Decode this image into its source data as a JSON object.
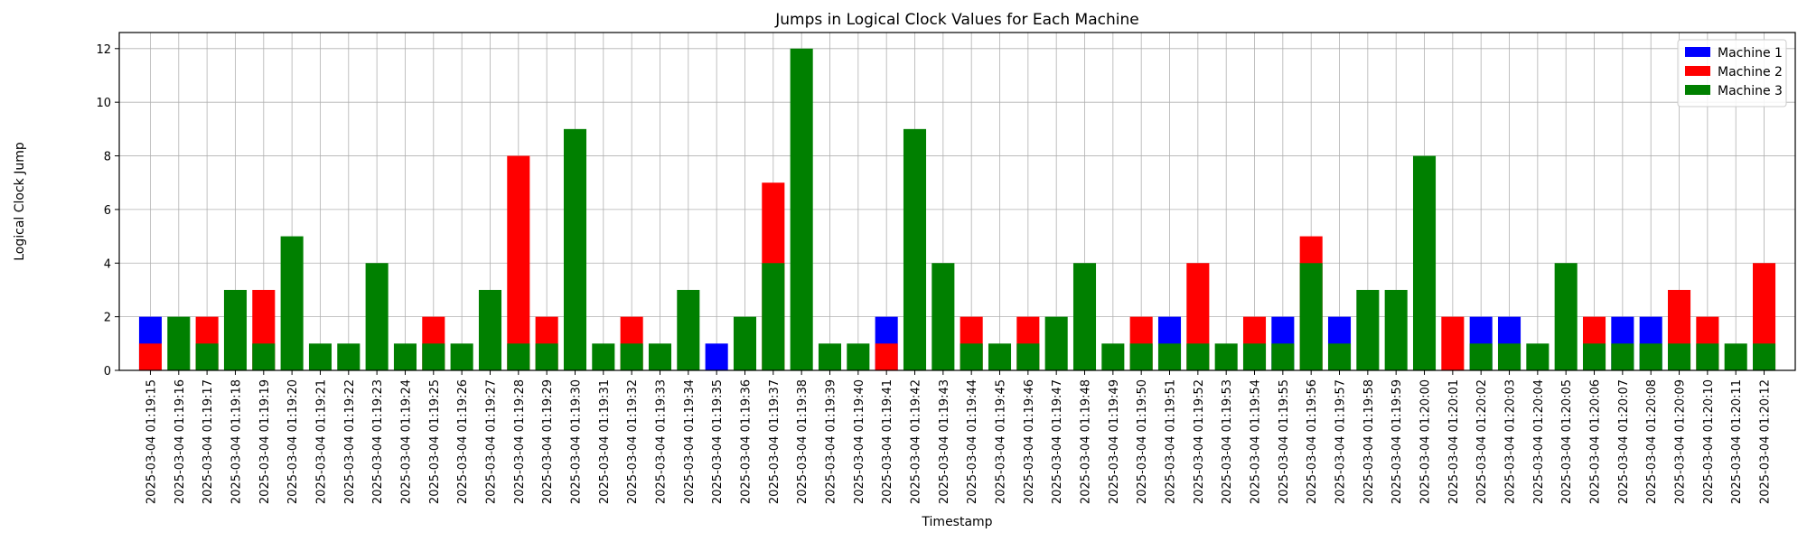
{
  "chart_data": {
    "type": "bar",
    "title": "Jumps in Logical Clock Values for Each Machine",
    "xlabel": "Timestamp",
    "ylabel": "Logical Clock Jump",
    "ylim": [
      0,
      12.6
    ],
    "yticks": [
      0,
      2,
      4,
      6,
      8,
      10,
      12
    ],
    "grid": true,
    "legend_position": "top-right",
    "stacked": false,
    "categories": [
      "2025-03-04 01:19:15",
      "2025-03-04 01:19:16",
      "2025-03-04 01:19:17",
      "2025-03-04 01:19:18",
      "2025-03-04 01:19:19",
      "2025-03-04 01:19:20",
      "2025-03-04 01:19:21",
      "2025-03-04 01:19:22",
      "2025-03-04 01:19:23",
      "2025-03-04 01:19:24",
      "2025-03-04 01:19:25",
      "2025-03-04 01:19:26",
      "2025-03-04 01:19:27",
      "2025-03-04 01:19:28",
      "2025-03-04 01:19:29",
      "2025-03-04 01:19:30",
      "2025-03-04 01:19:31",
      "2025-03-04 01:19:32",
      "2025-03-04 01:19:33",
      "2025-03-04 01:19:34",
      "2025-03-04 01:19:35",
      "2025-03-04 01:19:36",
      "2025-03-04 01:19:37",
      "2025-03-04 01:19:38",
      "2025-03-04 01:19:39",
      "2025-03-04 01:19:40",
      "2025-03-04 01:19:41",
      "2025-03-04 01:19:42",
      "2025-03-04 01:19:43",
      "2025-03-04 01:19:44",
      "2025-03-04 01:19:45",
      "2025-03-04 01:19:46",
      "2025-03-04 01:19:47",
      "2025-03-04 01:19:48",
      "2025-03-04 01:19:49",
      "2025-03-04 01:19:50",
      "2025-03-04 01:19:51",
      "2025-03-04 01:19:52",
      "2025-03-04 01:19:53",
      "2025-03-04 01:19:54",
      "2025-03-04 01:19:55",
      "2025-03-04 01:19:56",
      "2025-03-04 01:19:57",
      "2025-03-04 01:19:58",
      "2025-03-04 01:19:59",
      "2025-03-04 01:20:00",
      "2025-03-04 01:20:01",
      "2025-03-04 01:20:02",
      "2025-03-04 01:20:03",
      "2025-03-04 01:20:04",
      "2025-03-04 01:20:05",
      "2025-03-04 01:20:06",
      "2025-03-04 01:20:07",
      "2025-03-04 01:20:08",
      "2025-03-04 01:20:09",
      "2025-03-04 01:20:10",
      "2025-03-04 01:20:11",
      "2025-03-04 01:20:12"
    ],
    "series": [
      {
        "name": "Machine 1",
        "color": "#0000ff",
        "values": [
          2,
          0,
          0,
          0,
          0,
          0,
          0,
          0,
          0,
          0,
          0,
          0,
          0,
          0,
          0,
          0,
          0,
          0,
          0,
          0,
          1,
          0,
          0,
          0,
          0,
          0,
          2,
          0,
          0,
          0,
          0,
          0,
          0,
          0,
          0,
          0,
          2,
          0,
          0,
          0,
          2,
          0,
          2,
          0,
          0,
          0,
          0,
          2,
          2,
          0,
          0,
          0,
          2,
          2,
          0,
          0,
          0,
          0
        ]
      },
      {
        "name": "Machine 2",
        "color": "#ff0000",
        "values": [
          1,
          0,
          2,
          0,
          3,
          0,
          0,
          0,
          0,
          0,
          2,
          0,
          0,
          8,
          2,
          0,
          0,
          2,
          0,
          0,
          0,
          0,
          7,
          0,
          0,
          0,
          1,
          0,
          0,
          2,
          0,
          2,
          0,
          0,
          0,
          2,
          0,
          4,
          0,
          2,
          0,
          5,
          0,
          0,
          0,
          0,
          2,
          0,
          0,
          0,
          0,
          2,
          0,
          0,
          3,
          2,
          0,
          4
        ]
      },
      {
        "name": "Machine 3",
        "color": "#008000",
        "values": [
          0,
          2,
          1,
          3,
          1,
          5,
          1,
          1,
          4,
          1,
          1,
          1,
          3,
          1,
          1,
          9,
          1,
          1,
          1,
          3,
          0,
          2,
          4,
          12,
          1,
          1,
          0,
          9,
          4,
          1,
          1,
          1,
          2,
          4,
          1,
          1,
          1,
          1,
          1,
          1,
          1,
          4,
          1,
          3,
          3,
          8,
          0,
          1,
          1,
          1,
          4,
          1,
          1,
          1,
          1,
          1,
          1,
          1
        ]
      }
    ]
  }
}
